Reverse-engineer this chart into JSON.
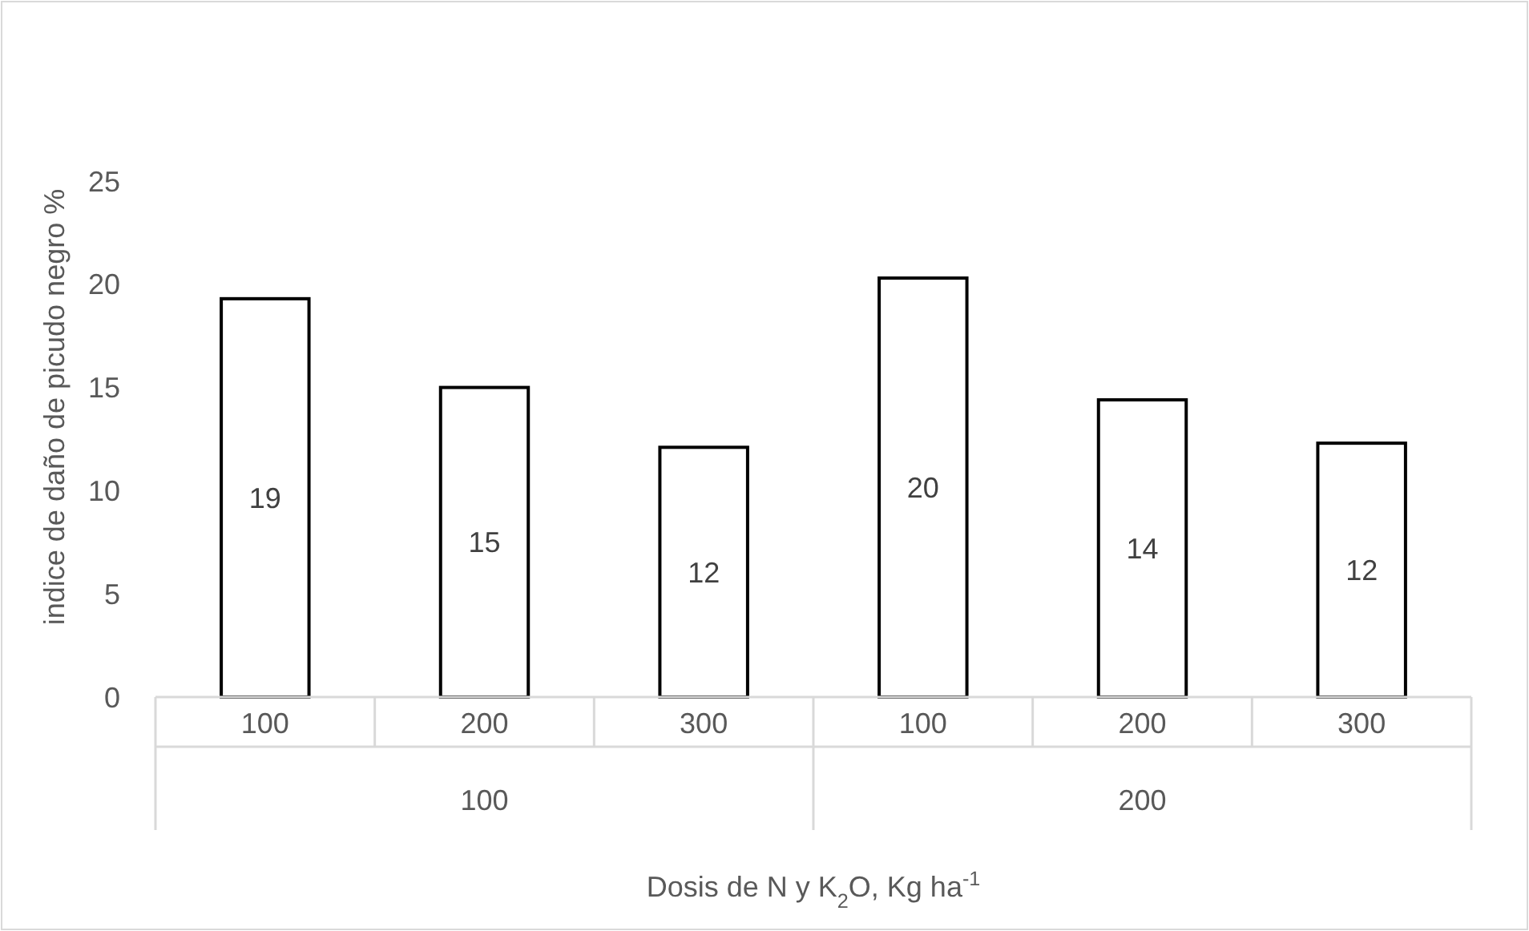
{
  "chart_data": {
    "type": "bar",
    "xlabel": "Dosis de N y K$_{2}$O, Kg ha$^{-1}$",
    "ylabel": "indice de daño de picudo negro %",
    "categories": [
      "100",
      "200",
      "300",
      "100",
      "200",
      "300"
    ],
    "values": [
      19.3,
      15.0,
      12.1,
      20.3,
      14.4,
      12.3
    ],
    "value_labels": [
      "19",
      "15",
      "12",
      "20",
      "14",
      "12"
    ],
    "color": "#ffffff",
    "ylim": [
      0,
      25
    ],
    "yticks": [
      0,
      5,
      10,
      15,
      20,
      25
    ],
    "grid": false,
    "annotations": [
      "100",
      "200"
    ]
  }
}
